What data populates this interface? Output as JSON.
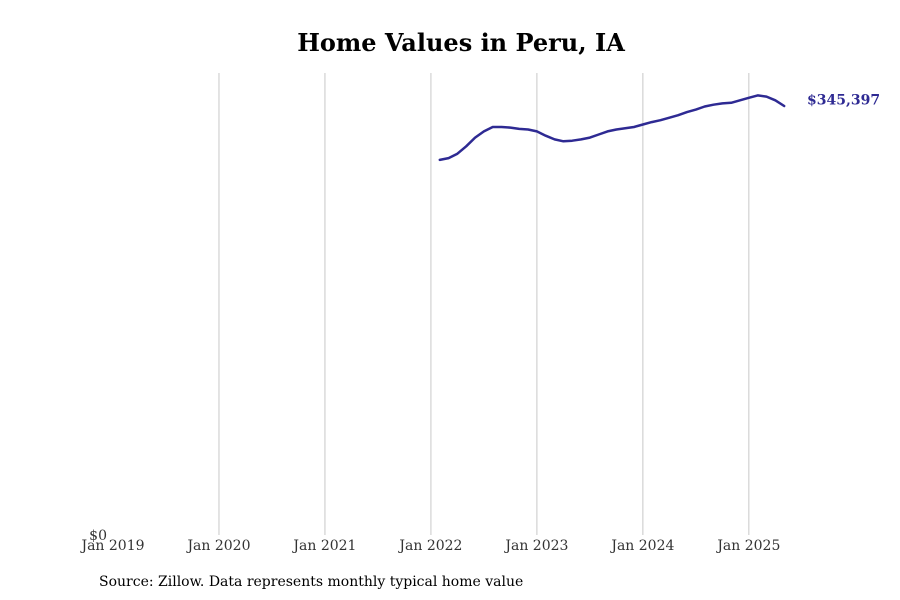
{
  "colors": {
    "line": "#2e2a93",
    "grid": "#c8c8c8"
  },
  "source_text": "Source: Zillow. Data represents monthly typical home value",
  "chart_data": {
    "type": "line",
    "title": "Home Values in Peru, IA",
    "xlabel": "",
    "ylabel": "",
    "x_ticks": [
      "Jan 2019",
      "Jan 2020",
      "Jan 2021",
      "Jan 2022",
      "Jan 2023",
      "Jan 2024",
      "Jan 2025"
    ],
    "y_ticks": [
      "$0"
    ],
    "ylim": [
      0,
      372000
    ],
    "xlim": [
      "2019-01",
      "2025-06"
    ],
    "grid": "vertical",
    "end_label": "$345,397",
    "x": [
      "2022-02",
      "2022-03",
      "2022-04",
      "2022-05",
      "2022-06",
      "2022-07",
      "2022-08",
      "2022-09",
      "2022-10",
      "2022-11",
      "2022-12",
      "2023-01",
      "2023-02",
      "2023-03",
      "2023-04",
      "2023-05",
      "2023-06",
      "2023-07",
      "2023-08",
      "2023-09",
      "2023-10",
      "2023-11",
      "2023-12",
      "2024-01",
      "2024-02",
      "2024-03",
      "2024-04",
      "2024-05",
      "2024-06",
      "2024-07",
      "2024-08",
      "2024-09",
      "2024-10",
      "2024-11",
      "2024-12",
      "2025-01",
      "2025-02",
      "2025-03",
      "2025-04",
      "2025-05"
    ],
    "values": [
      302000,
      303500,
      307000,
      313000,
      320000,
      325000,
      328500,
      328500,
      328000,
      327000,
      326500,
      325000,
      321500,
      318500,
      317000,
      317500,
      318500,
      320000,
      322500,
      325000,
      326500,
      327500,
      328500,
      330500,
      332500,
      334000,
      336000,
      338000,
      340500,
      342500,
      345000,
      346500,
      347500,
      348000,
      350000,
      352000,
      354000,
      353000,
      350000,
      345397
    ]
  }
}
